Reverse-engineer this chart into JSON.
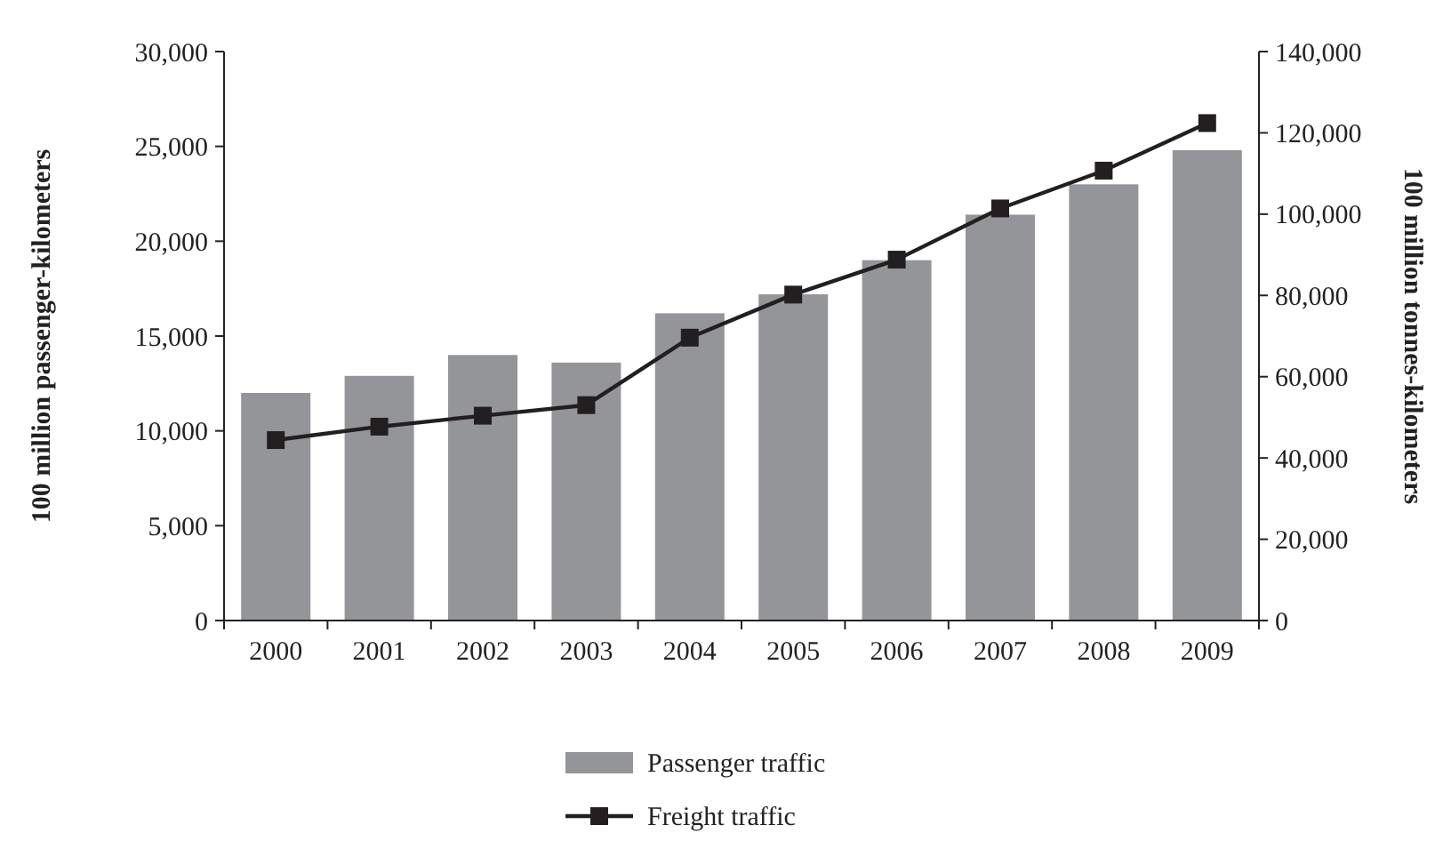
{
  "chart_data": {
    "type": "bar",
    "ylabel": "100 million passenger-kilometers",
    "y2label": "100 million tonnes-kilometers",
    "categories": [
      "2000",
      "2001",
      "2002",
      "2003",
      "2004",
      "2005",
      "2006",
      "2007",
      "2008",
      "2009"
    ],
    "series": [
      {
        "name": "Passenger traffic",
        "color": "#939598",
        "values": [
          12000,
          12900,
          14000,
          13600,
          16200,
          17200,
          19000,
          21400,
          23000,
          24800
        ]
      },
      {
        "name": "Freight traffic",
        "type": "line",
        "axis": "y2",
        "color": "#231f20",
        "marker": "square",
        "values": [
          44400,
          47700,
          50400,
          53000,
          69600,
          80200,
          88800,
          101400,
          110700,
          122400
        ]
      }
    ],
    "ylim": [
      0,
      30000
    ],
    "yticks": [
      {
        "value": 0,
        "label": "0"
      },
      {
        "value": 5000,
        "label": "5,000"
      },
      {
        "value": 10000,
        "label": "10,000"
      },
      {
        "value": 15000,
        "label": "15,000"
      },
      {
        "value": 20000,
        "label": "20,000"
      },
      {
        "value": 25000,
        "label": "25,000"
      },
      {
        "value": 30000,
        "label": "30,000"
      }
    ],
    "y2lim": [
      0,
      140000
    ],
    "y2ticks": [
      {
        "value": 0,
        "label": "0"
      },
      {
        "value": 20000,
        "label": "20,000"
      },
      {
        "value": 40000,
        "label": "40,000"
      },
      {
        "value": 60000,
        "label": "60,000"
      },
      {
        "value": 80000,
        "label": "80,000"
      },
      {
        "value": 100000,
        "label": "100,000"
      },
      {
        "value": 120000,
        "label": "120,000"
      },
      {
        "value": 140000,
        "label": "140,000"
      }
    ],
    "grid": false,
    "legend": "bottom"
  }
}
